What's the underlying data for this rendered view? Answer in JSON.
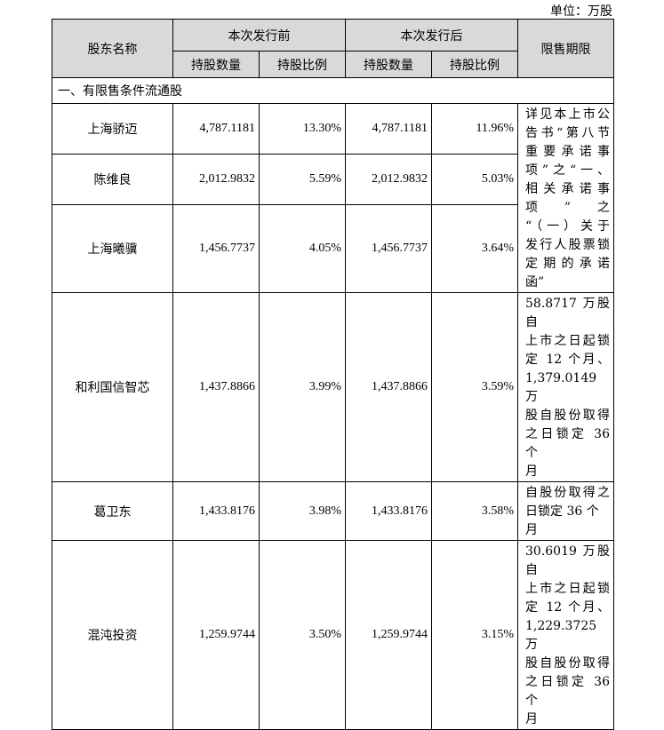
{
  "unit_label": "单位：万股",
  "header": {
    "name_col": "股东名称",
    "before_group": "本次发行前",
    "after_group": "本次发行后",
    "lockup_col": "限售期限",
    "shares_col": "持股数量",
    "ratio_col": "持股比例"
  },
  "section_title": "一、有限售条件流通股",
  "rows": [
    {
      "name": "上海骄迈",
      "shares_before": "4,787.1181",
      "ratio_before": "13.30%",
      "shares_after": "4,787.1181",
      "ratio_after": "11.96%"
    },
    {
      "name": "陈维良",
      "shares_before": "2,012.9832",
      "ratio_before": "5.59%",
      "shares_after": "2,012.9832",
      "ratio_after": "5.03%"
    },
    {
      "name": "上海曦骥",
      "shares_before": "1,456.7737",
      "ratio_before": "4.05%",
      "shares_after": "1,456.7737",
      "ratio_after": "3.64%"
    },
    {
      "name": "和利国信智芯",
      "shares_before": "1,437.8866",
      "ratio_before": "3.99%",
      "shares_after": "1,437.8866",
      "ratio_after": "3.59%"
    },
    {
      "name": "葛卫东",
      "shares_before": "1,433.8176",
      "ratio_before": "3.98%",
      "shares_after": "1,433.8176",
      "ratio_after": "3.58%"
    },
    {
      "name": "混沌投资",
      "shares_before": "1,259.9744",
      "ratio_before": "3.50%",
      "shares_after": "1,259.9744",
      "ratio_after": "3.15%"
    }
  ],
  "lockup_notes": {
    "group_1_3": [
      "详见本上市公",
      "告书“第八节",
      "重要承诺事",
      "项”之“一、",
      "相关承诺事",
      "项　”　之",
      "“（一）关于",
      "发行人股票锁",
      "定期的承诺",
      "函”"
    ],
    "heli": [
      "58.8717 万股自",
      "上市之日起锁",
      "定 12 个月、",
      "1,379.0149　万",
      "股自股份取得",
      "之日锁定 36 个",
      "月"
    ],
    "ge": [
      "自股份取得之",
      "日锁定 36 个月"
    ],
    "hundun": [
      "30.6019 万股自",
      "上市之日起锁",
      "定 12 个月、",
      "1,229.3725　万",
      "股自股份取得",
      "之日锁定 36 个",
      "月"
    ]
  }
}
